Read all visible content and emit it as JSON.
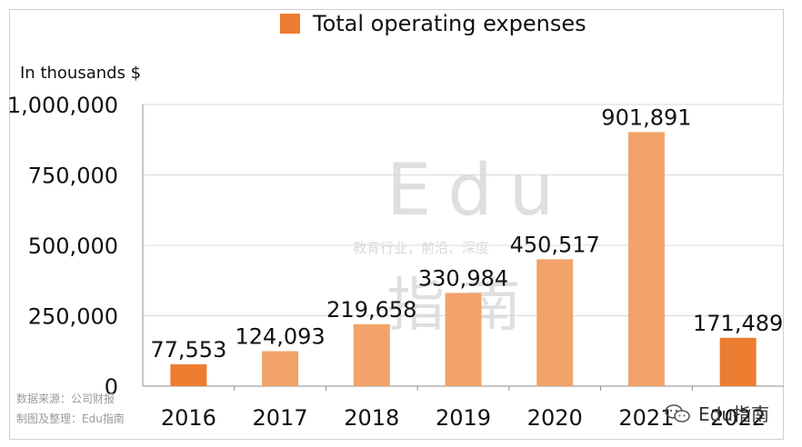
{
  "chart_data": {
    "type": "bar",
    "categories": [
      "2016",
      "2017",
      "2018",
      "2019",
      "2020",
      "2021",
      "2022"
    ],
    "values": [
      77553,
      124093,
      219658,
      330984,
      450517,
      901891,
      171489
    ],
    "value_labels": [
      "77,553",
      "124,093",
      "219,658",
      "330,984",
      "450,517",
      "901,891",
      "171,489"
    ],
    "y_ticks": [
      0,
      250000,
      500000,
      750000,
      1000000
    ],
    "y_tick_labels": [
      "0",
      "250,000",
      "500,000",
      "750,000",
      "1,000,000"
    ],
    "ylim": [
      0,
      1000000
    ],
    "ylabel": "In thousands $",
    "legend": "Total operating expenses",
    "legend_position": "top",
    "grid": true,
    "bar_colors": [
      "#ed7d31",
      "#f1a36a",
      "#f1a36a",
      "#f1a36a",
      "#f1a36a",
      "#f1a36a",
      "#ed7d31"
    ]
  },
  "colors": {
    "accent": "#ed7d31",
    "light": "#f1a36a",
    "grid": "#d9d9d9"
  },
  "source_lines": [
    "数据来源：公司财报",
    "制图及整理：Edu指南"
  ],
  "watermark": {
    "big": "Edu",
    "middle": "教育行业，前沿、深度",
    "cn": "指南",
    "brand": "Edu指南",
    "brand_icon": "wechat-icon"
  }
}
